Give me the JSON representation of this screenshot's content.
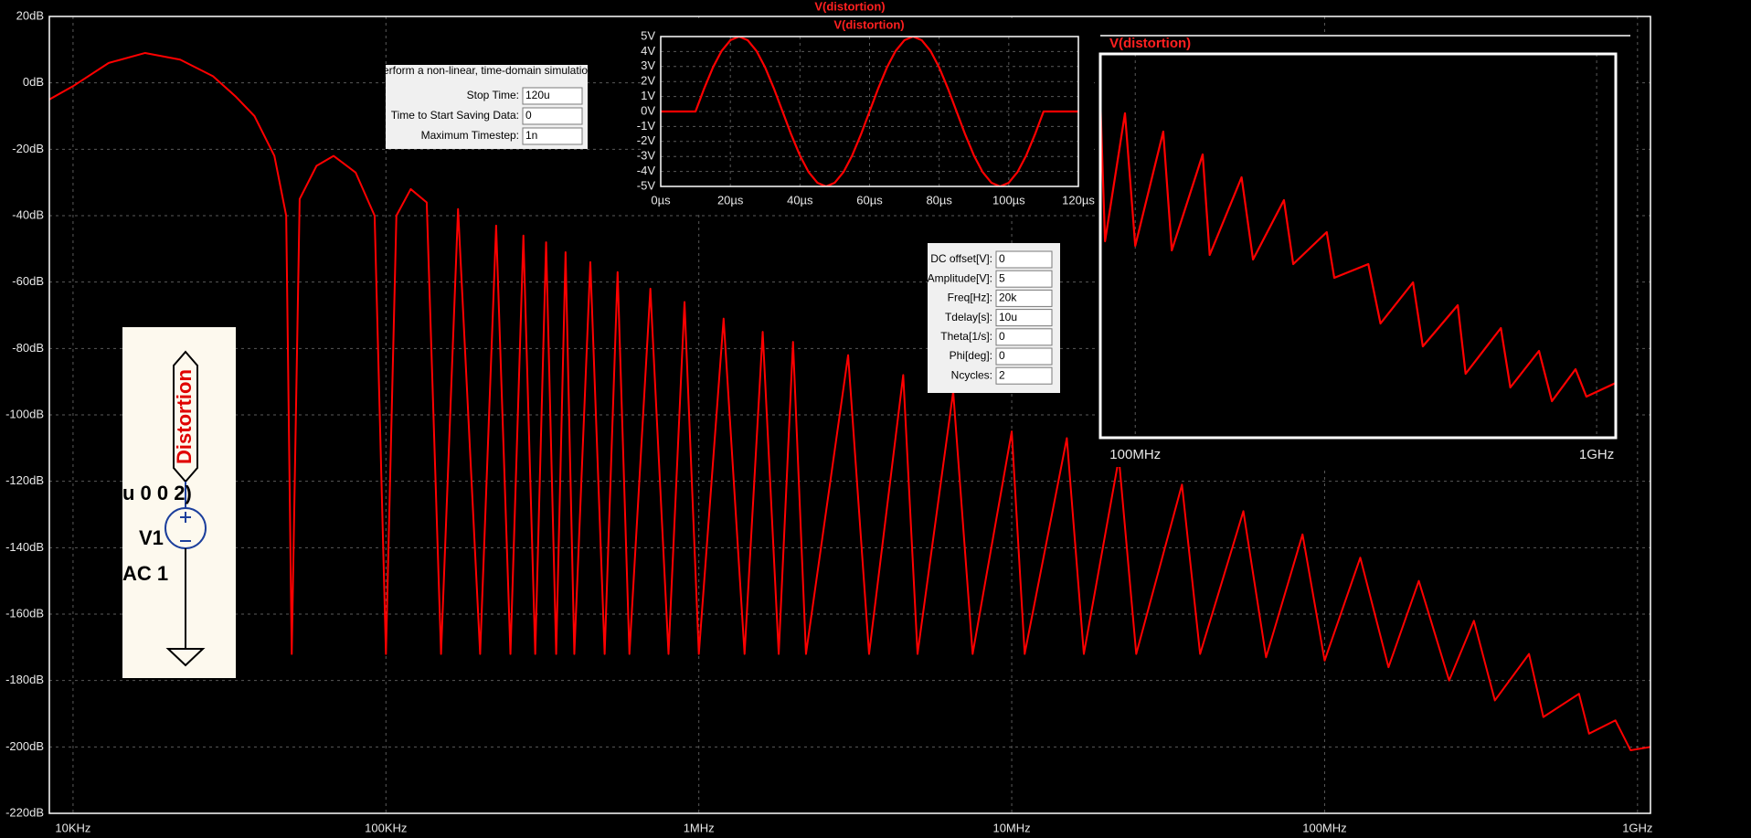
{
  "chart_data": [
    {
      "type": "line",
      "title": "V(distortion)",
      "x": [
        8400,
        10000,
        13000,
        17000,
        22000,
        28000,
        33000,
        38000,
        44000,
        48000,
        50000,
        53000,
        60000,
        68000,
        80000,
        92000,
        100000,
        108000,
        120000,
        135000,
        150000,
        170000,
        200000,
        225000,
        250000,
        275000,
        300000,
        325000,
        350000,
        375000,
        400000,
        450000,
        500000,
        550000,
        600000,
        700000,
        800000,
        900000,
        1000000,
        1200000,
        1400000,
        1600000,
        1800000,
        2000000,
        2200000,
        3000000,
        3500000,
        4500000,
        5000000,
        6500000,
        7500000,
        10000000,
        11000000,
        15000000,
        17000000,
        22000000,
        25000000,
        35000000,
        40000000,
        55000000,
        65000000,
        85000000,
        100000000,
        130000000,
        160000000,
        200000000,
        250000000,
        300000000,
        350000000,
        450000000,
        500000000,
        650000000,
        700000000,
        850000000,
        950000000,
        1100000000
      ],
      "series": [
        {
          "color": "#ff0000",
          "values": [
            -5,
            -1,
            6,
            9,
            7,
            2,
            -4,
            -10,
            -22,
            -40,
            -172,
            -35,
            -25,
            -22,
            -27,
            -40,
            -172,
            -40,
            -32,
            -36,
            -172,
            -38,
            -172,
            -43,
            -172,
            -46,
            -172,
            -48,
            -172,
            -51,
            -172,
            -54,
            -172,
            -57,
            -172,
            -62,
            -172,
            -66,
            -172,
            -71,
            -172,
            -75,
            -172,
            -78,
            -172,
            -82,
            -172,
            -88,
            -172,
            -93,
            -172,
            -105,
            -172,
            -107,
            -172,
            -113,
            -172,
            -121,
            -172,
            -129,
            -173,
            -136,
            -174,
            -143,
            -176,
            -150,
            -180,
            -162,
            -186,
            -172,
            -191,
            -184,
            -196,
            -192,
            -201,
            -200
          ]
        }
      ],
      "xscale": "log",
      "xlim": [
        8400,
        1100000000
      ],
      "xticks": [
        {
          "value": 10000,
          "label": "10KHz"
        },
        {
          "value": 100000,
          "label": "100KHz"
        },
        {
          "value": 1000000,
          "label": "1MHz"
        },
        {
          "value": 10000000,
          "label": "10MHz"
        },
        {
          "value": 100000000,
          "label": "100MHz"
        },
        {
          "value": 1000000000,
          "label": "1GHz"
        }
      ],
      "ylim": [
        -220,
        20
      ],
      "yticks": [
        {
          "value": 20,
          "label": "20dB"
        },
        {
          "value": 0,
          "label": "0dB"
        },
        {
          "value": -20,
          "label": "-20dB"
        },
        {
          "value": -40,
          "label": "-40dB"
        },
        {
          "value": -60,
          "label": "-60dB"
        },
        {
          "value": -80,
          "label": "-80dB"
        },
        {
          "value": -100,
          "label": "-100dB"
        },
        {
          "value": -120,
          "label": "-120dB"
        },
        {
          "value": -140,
          "label": "-140dB"
        },
        {
          "value": -160,
          "label": "-160dB"
        },
        {
          "value": -180,
          "label": "-180dB"
        },
        {
          "value": -200,
          "label": "-200dB"
        },
        {
          "value": -220,
          "label": "-220dB"
        }
      ],
      "grid": true
    },
    {
      "type": "line",
      "title": "V(distortion)",
      "x": [
        0,
        10,
        12.5,
        15,
        17.5,
        20,
        22.5,
        25,
        27.5,
        30,
        32.5,
        35,
        37.5,
        40,
        42.5,
        45,
        47.5,
        50,
        52.5,
        55,
        57.5,
        60,
        62.5,
        65,
        67.5,
        70,
        72.5,
        75,
        77.5,
        80,
        82.5,
        85,
        87.5,
        90,
        92.5,
        95,
        97.5,
        100,
        102.5,
        105,
        107.5,
        110,
        120
      ],
      "series": [
        {
          "color": "#ff0000",
          "values": [
            0,
            0,
            1.545,
            2.939,
            4.045,
            4.755,
            5,
            4.755,
            4.045,
            2.939,
            1.545,
            0,
            -1.545,
            -2.939,
            -4.045,
            -4.755,
            -5,
            -4.755,
            -4.045,
            -2.939,
            -1.545,
            0,
            1.545,
            2.939,
            4.045,
            4.755,
            5,
            4.755,
            4.045,
            2.939,
            1.545,
            0,
            -1.545,
            -2.939,
            -4.045,
            -4.755,
            -5,
            -4.755,
            -4.045,
            -2.939,
            -1.545,
            0,
            0
          ]
        }
      ],
      "xlim": [
        0,
        120
      ],
      "xticks": [
        {
          "value": 0,
          "label": "0µs"
        },
        {
          "value": 20,
          "label": "20µs"
        },
        {
          "value": 40,
          "label": "40µs"
        },
        {
          "value": 60,
          "label": "60µs"
        },
        {
          "value": 80,
          "label": "80µs"
        },
        {
          "value": 100,
          "label": "100µs"
        },
        {
          "value": 120,
          "label": "120µs"
        }
      ],
      "ylim": [
        -5,
        5
      ],
      "yticks": [
        {
          "value": 5,
          "label": "5V"
        },
        {
          "value": 4,
          "label": "4V"
        },
        {
          "value": 3,
          "label": "3V"
        },
        {
          "value": 2,
          "label": "2V"
        },
        {
          "value": 1,
          "label": "1V"
        },
        {
          "value": 0,
          "label": "0V"
        },
        {
          "value": -1,
          "label": "-1V"
        },
        {
          "value": -2,
          "label": "-2V"
        },
        {
          "value": -3,
          "label": "-3V"
        },
        {
          "value": -4,
          "label": "-4V"
        },
        {
          "value": -5,
          "label": "-5V"
        }
      ],
      "grid": true
    },
    {
      "type": "line",
      "title": "V(distortion)",
      "x": [
        84000000,
        86000000,
        95000000,
        100000000,
        115000000,
        120000000,
        140000000,
        145000000,
        170000000,
        180000000,
        210000000,
        220000000,
        260000000,
        270000000,
        320000000,
        340000000,
        400000000,
        420000000,
        500000000,
        520000000,
        620000000,
        650000000,
        750000000,
        800000000,
        900000000,
        950000000,
        1100000000
      ],
      "series": [
        {
          "color": "#ff0000",
          "values": [
            -136,
            -167,
            -139,
            -168,
            -143,
            -169,
            -148,
            -170,
            -153,
            -171,
            -158,
            -172,
            -165,
            -175,
            -172,
            -185,
            -176,
            -190,
            -181,
            -196,
            -186,
            -199,
            -191,
            -202,
            -195,
            -201,
            -198
          ]
        }
      ],
      "xscale": "log",
      "xlim": [
        84000000,
        1100000000
      ],
      "xticks": [
        {
          "value": 100000000,
          "label": "100MHz"
        },
        {
          "value": 1000000000,
          "label": "1GHz"
        }
      ],
      "ylim": [
        -210,
        -126
      ],
      "grid": true
    }
  ],
  "transient_dialog": {
    "description": "Perform a non-linear, time-domain simulation.",
    "fields": [
      {
        "label": "Stop Time:",
        "value": "120u"
      },
      {
        "label": "Time to Start Saving Data:",
        "value": "0"
      },
      {
        "label": "Maximum Timestep:",
        "value": "1n"
      }
    ]
  },
  "source_dialog": {
    "fields": [
      {
        "label": "DC offset[V]:",
        "value": "0"
      },
      {
        "label": "Amplitude[V]:",
        "value": "5"
      },
      {
        "label": "Freq[Hz]:",
        "value": "20k"
      },
      {
        "label": "Tdelay[s]:",
        "value": "10u"
      },
      {
        "label": "Theta[1/s]:",
        "value": "0"
      },
      {
        "label": "Phi[deg]:",
        "value": "0"
      },
      {
        "label": "Ncycles:",
        "value": "2"
      }
    ]
  },
  "schematic": {
    "net_label": "Distortion",
    "value_tail": "u 0 0 2)",
    "instance_name": "V1",
    "ac_spec": "AC 1"
  }
}
